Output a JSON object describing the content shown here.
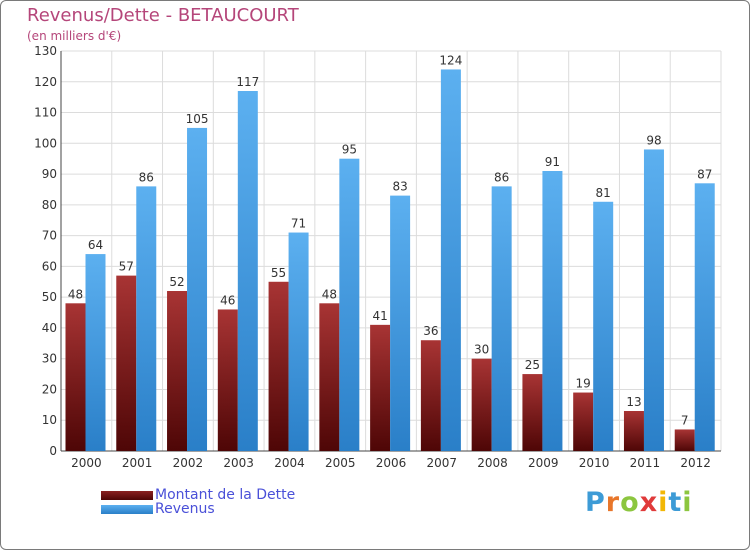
{
  "chart_data": {
    "type": "bar",
    "title": "Revenus/Dette - BETAUCOURT",
    "subtitle": "(en milliers d'€)",
    "xlabel": "",
    "ylabel": "",
    "ylim": [
      0,
      130
    ],
    "yticks": [
      0,
      10,
      20,
      30,
      40,
      50,
      60,
      70,
      80,
      90,
      100,
      110,
      120,
      130
    ],
    "grid": true,
    "categories": [
      "2000",
      "2001",
      "2002",
      "2003",
      "2004",
      "2005",
      "2006",
      "2007",
      "2008",
      "2009",
      "2010",
      "2011",
      "2012"
    ],
    "series": [
      {
        "name": "Montant de la Dette",
        "color": "#7a1616",
        "values": [
          48,
          57,
          52,
          46,
          55,
          48,
          41,
          36,
          30,
          25,
          19,
          13,
          7
        ]
      },
      {
        "name": "Revenus",
        "color": "#3b98e0",
        "values": [
          64,
          86,
          105,
          117,
          71,
          95,
          83,
          124,
          86,
          91,
          81,
          98,
          87
        ]
      }
    ],
    "legend_position": "bottom-left"
  },
  "brand": {
    "letters": [
      "P",
      "r",
      "o",
      "x",
      "i",
      "t",
      "i"
    ],
    "colors": [
      "#3d9bd6",
      "#e8762a",
      "#8cc63f",
      "#e03a3a",
      "#f2b705",
      "#3d9bd6",
      "#8cc63f"
    ]
  }
}
